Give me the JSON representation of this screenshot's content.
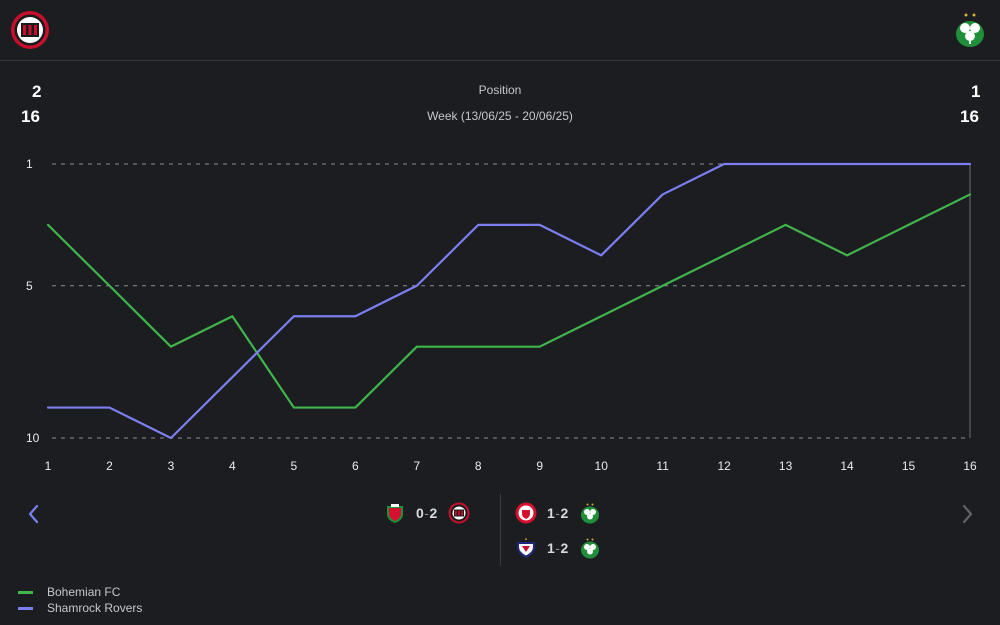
{
  "header": {
    "home_logo": "bohemian-fc-crest-icon",
    "away_logo": "shamrock-rovers-crest-icon"
  },
  "left_stats": {
    "current": "2",
    "total": "16"
  },
  "right_stats": {
    "current": "1",
    "total": "16"
  },
  "title": "Position",
  "subtitle": "Week (13/06/25 - 20/06/25)",
  "colors": {
    "bohemian": "#3fb54a",
    "shamrock": "#7b7ff0",
    "grid": "#8a8f95",
    "background": "#1b1d20"
  },
  "chart_data": {
    "type": "line",
    "title": "Position",
    "subtitle": "Week (13/06/25 - 20/06/25)",
    "x": [
      1,
      2,
      3,
      4,
      5,
      6,
      7,
      8,
      9,
      10,
      11,
      12,
      13,
      14,
      15,
      16
    ],
    "y_ticks": [
      1,
      5,
      10
    ],
    "y_range": [
      1,
      10
    ],
    "y_inverted": true,
    "grid": "dashed horizontal at y ticks",
    "series": [
      {
        "name": "Bohemian FC",
        "color": "#3fb54a",
        "values": [
          3,
          5,
          7,
          6,
          9,
          9,
          7,
          7,
          7,
          6,
          5,
          4,
          3,
          4,
          3,
          2
        ]
      },
      {
        "name": "Shamrock Rovers",
        "color": "#7b7ff0",
        "values": [
          9,
          9,
          10,
          8,
          6,
          6,
          5,
          3,
          3,
          4,
          2,
          1,
          1,
          1,
          1,
          1
        ]
      }
    ],
    "legend": "bottom-left"
  },
  "nav": {
    "prev_icon": "chevron-left-icon",
    "next_icon": "chevron-right-icon"
  },
  "matches": [
    {
      "home_badge": "cork-city-crest-icon",
      "home": "0",
      "away": "2",
      "away_badge": "bohemian-fc-crest-icon"
    },
    {
      "home_badge": "shelbourne-crest-icon",
      "home": "1",
      "away": "2",
      "away_badge": "shamrock-rovers-crest-icon"
    },
    {
      "home_badge": "drogheda-united-crest-icon",
      "home": "1",
      "away": "2",
      "away_badge": "shamrock-rovers-crest-icon"
    }
  ],
  "score_separator": "-",
  "legend": [
    {
      "label": "Bohemian FC",
      "color": "#3fb54a"
    },
    {
      "label": "Shamrock Rovers",
      "color": "#7b7ff0"
    }
  ]
}
